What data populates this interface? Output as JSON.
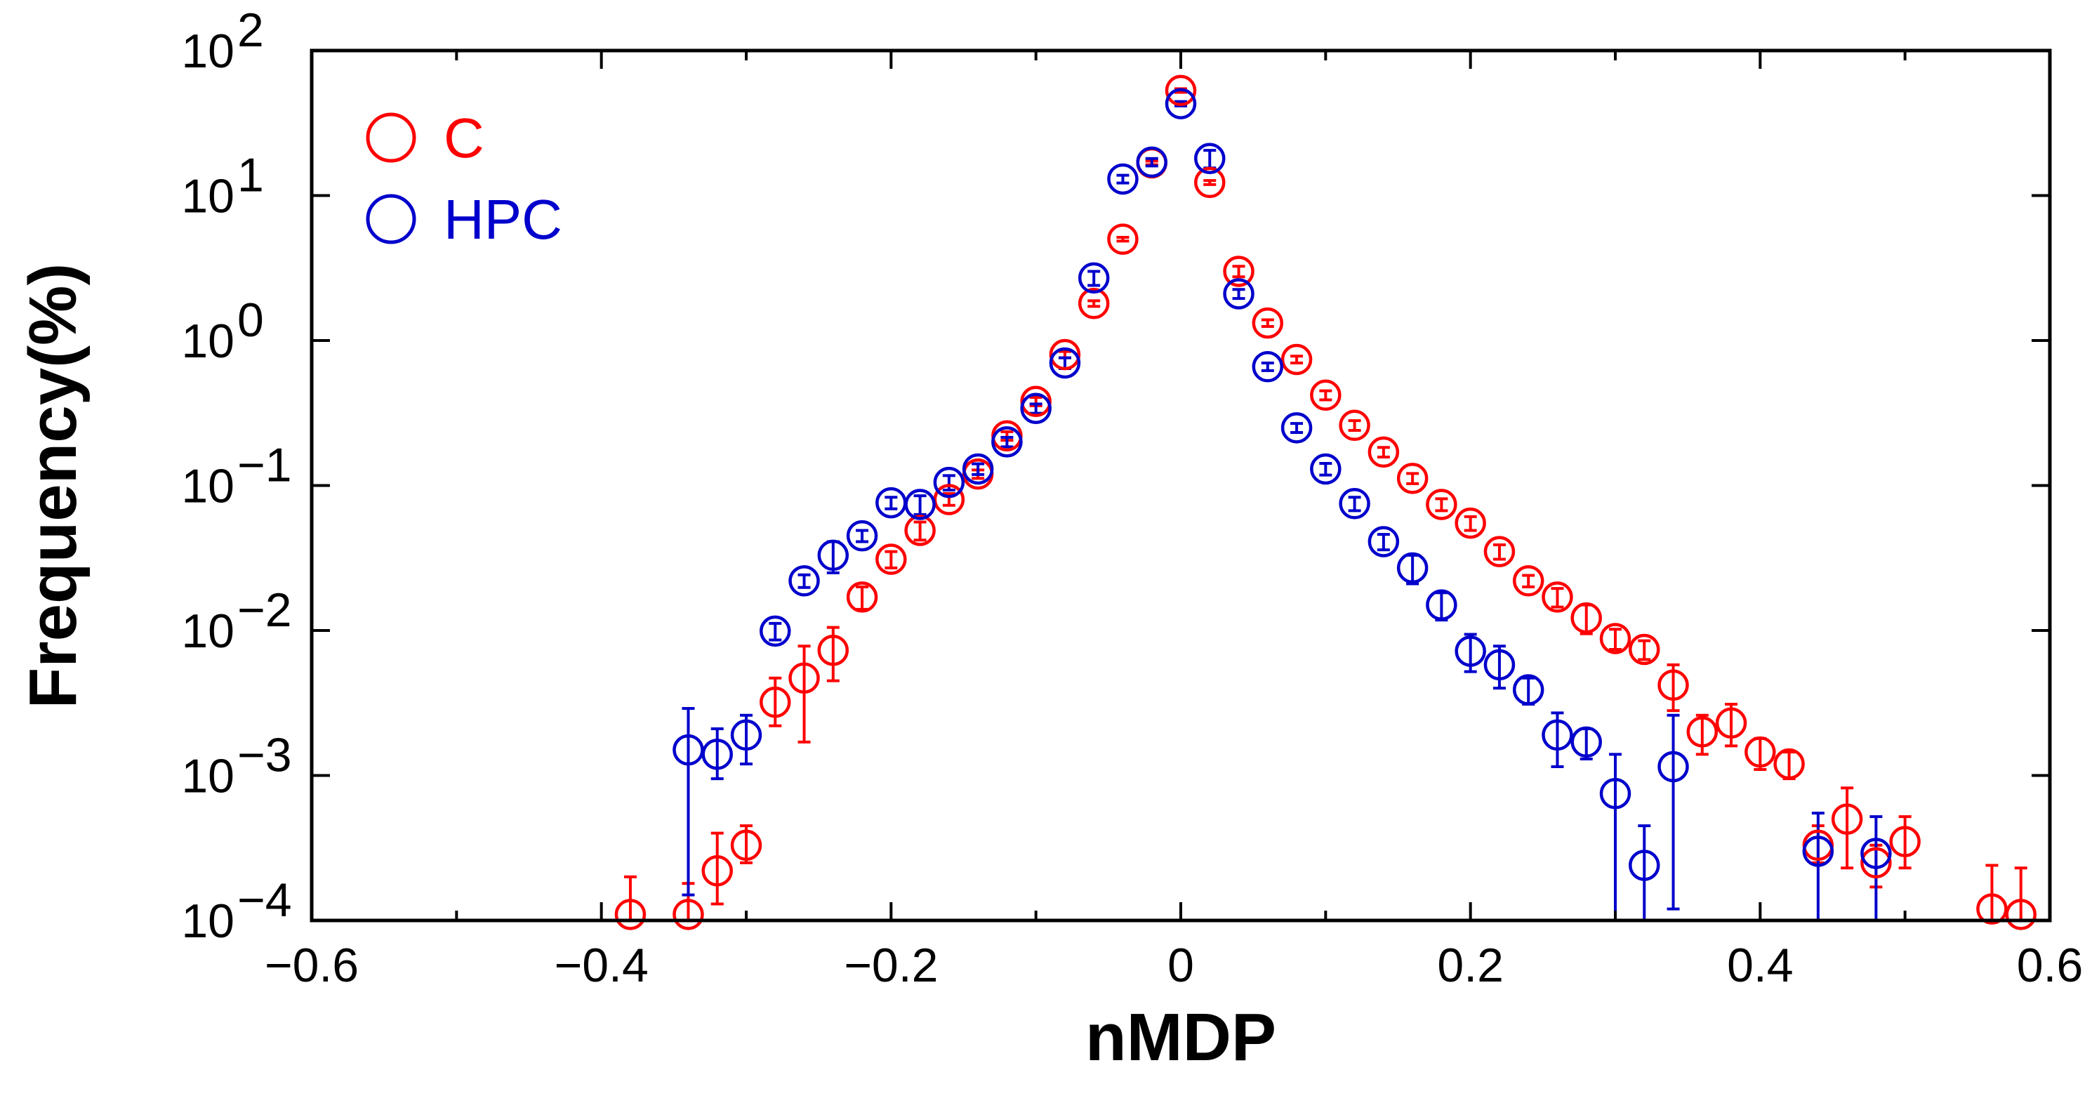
{
  "chart_data": {
    "type": "scatter",
    "title": "",
    "xlabel": "nMDP",
    "ylabel": "Frequency(%)",
    "xlim": [
      -0.6,
      0.6
    ],
    "ylim": [
      0.0001,
      100
    ],
    "yscale": "log",
    "legend_position": "top-left",
    "x_ticks": [
      "−0.6",
      "−0.4",
      "−0.2",
      "0",
      "0.2",
      "0.4",
      "0.6"
    ],
    "x_tick_values": [
      -0.6,
      -0.4,
      -0.2,
      0,
      0.2,
      0.4,
      0.6
    ],
    "y_ticks": [
      {
        "value": 100,
        "base": "10",
        "exp": "2"
      },
      {
        "value": 10,
        "base": "10",
        "exp": "1"
      },
      {
        "value": 1,
        "base": "10",
        "exp": "0"
      },
      {
        "value": 0.1,
        "base": "10",
        "exp": "−1"
      },
      {
        "value": 0.01,
        "base": "10",
        "exp": "−2"
      },
      {
        "value": 0.001,
        "base": "10",
        "exp": "−3"
      },
      {
        "value": 0.0001,
        "base": "10",
        "exp": "−4"
      }
    ],
    "series": [
      {
        "name": "C",
        "color": "#ff0000",
        "points": [
          {
            "x": -0.38,
            "y": 0.00011,
            "lo": 0.0001,
            "hi": 0.0002
          },
          {
            "x": -0.34,
            "y": 0.00011,
            "lo": 0.0001,
            "hi": 0.00018
          },
          {
            "x": -0.32,
            "y": 0.00022,
            "lo": 0.00013,
            "hi": 0.0004
          },
          {
            "x": -0.3,
            "y": 0.00033,
            "lo": 0.00025,
            "hi": 0.00045
          },
          {
            "x": -0.28,
            "y": 0.0032,
            "lo": 0.0022,
            "hi": 0.0047
          },
          {
            "x": -0.26,
            "y": 0.0047,
            "lo": 0.0017,
            "hi": 0.0078
          },
          {
            "x": -0.24,
            "y": 0.0073,
            "lo": 0.0045,
            "hi": 0.0105
          },
          {
            "x": -0.22,
            "y": 0.017,
            "lo": 0.014,
            "hi": 0.02
          },
          {
            "x": -0.2,
            "y": 0.031,
            "lo": 0.027,
            "hi": 0.035
          },
          {
            "x": -0.18,
            "y": 0.049,
            "lo": 0.042,
            "hi": 0.056
          },
          {
            "x": -0.16,
            "y": 0.08,
            "lo": 0.073,
            "hi": 0.088
          },
          {
            "x": -0.14,
            "y": 0.12,
            "lo": 0.112,
            "hi": 0.128
          },
          {
            "x": -0.12,
            "y": 0.22,
            "lo": 0.205,
            "hi": 0.235
          },
          {
            "x": -0.1,
            "y": 0.38,
            "lo": 0.355,
            "hi": 0.405
          },
          {
            "x": -0.08,
            "y": 0.8,
            "lo": 0.76,
            "hi": 0.84
          },
          {
            "x": -0.06,
            "y": 1.8,
            "lo": 1.72,
            "hi": 1.88
          },
          {
            "x": -0.04,
            "y": 5.0,
            "lo": 4.85,
            "hi": 5.15
          },
          {
            "x": -0.02,
            "y": 16.8,
            "lo": 16.3,
            "hi": 17.3
          },
          {
            "x": 0.0,
            "y": 53.0,
            "lo": 51.5,
            "hi": 54.5
          },
          {
            "x": 0.02,
            "y": 12.3,
            "lo": 11.9,
            "hi": 12.7
          },
          {
            "x": 0.04,
            "y": 3.0,
            "lo": 2.75,
            "hi": 3.25
          },
          {
            "x": 0.06,
            "y": 1.32,
            "lo": 1.25,
            "hi": 1.39
          },
          {
            "x": 0.08,
            "y": 0.74,
            "lo": 0.7,
            "hi": 0.78
          },
          {
            "x": 0.1,
            "y": 0.42,
            "lo": 0.39,
            "hi": 0.45
          },
          {
            "x": 0.12,
            "y": 0.26,
            "lo": 0.24,
            "hi": 0.28
          },
          {
            "x": 0.14,
            "y": 0.17,
            "lo": 0.157,
            "hi": 0.183
          },
          {
            "x": 0.16,
            "y": 0.112,
            "lo": 0.103,
            "hi": 0.121
          },
          {
            "x": 0.18,
            "y": 0.074,
            "lo": 0.067,
            "hi": 0.081
          },
          {
            "x": 0.2,
            "y": 0.055,
            "lo": 0.049,
            "hi": 0.061
          },
          {
            "x": 0.22,
            "y": 0.035,
            "lo": 0.031,
            "hi": 0.039
          },
          {
            "x": 0.24,
            "y": 0.022,
            "lo": 0.02,
            "hi": 0.024
          },
          {
            "x": 0.26,
            "y": 0.017,
            "lo": 0.0145,
            "hi": 0.0195
          },
          {
            "x": 0.28,
            "y": 0.0122,
            "lo": 0.0095,
            "hi": 0.015
          },
          {
            "x": 0.3,
            "y": 0.0088,
            "lo": 0.0074,
            "hi": 0.0102
          },
          {
            "x": 0.32,
            "y": 0.0074,
            "lo": 0.0063,
            "hi": 0.0085
          },
          {
            "x": 0.34,
            "y": 0.0042,
            "lo": 0.0028,
            "hi": 0.0058
          },
          {
            "x": 0.36,
            "y": 0.002,
            "lo": 0.0014,
            "hi": 0.0026
          },
          {
            "x": 0.38,
            "y": 0.0023,
            "lo": 0.0016,
            "hi": 0.0031
          },
          {
            "x": 0.4,
            "y": 0.00145,
            "lo": 0.0011,
            "hi": 0.0018
          },
          {
            "x": 0.42,
            "y": 0.0012,
            "lo": 0.00095,
            "hi": 0.00145
          },
          {
            "x": 0.44,
            "y": 0.00033,
            "lo": 0.00025,
            "hi": 0.00045
          },
          {
            "x": 0.46,
            "y": 0.0005,
            "lo": 0.00023,
            "hi": 0.00082
          },
          {
            "x": 0.48,
            "y": 0.00025,
            "lo": 0.00017,
            "hi": 0.00033
          },
          {
            "x": 0.5,
            "y": 0.00035,
            "lo": 0.00023,
            "hi": 0.00052
          },
          {
            "x": 0.56,
            "y": 0.00012,
            "lo": 0.0001,
            "hi": 0.00024
          },
          {
            "x": 0.58,
            "y": 0.00011,
            "lo": 0.0001,
            "hi": 0.00023
          }
        ]
      },
      {
        "name": "HPC",
        "color": "#0000cc",
        "points": [
          {
            "x": -0.34,
            "y": 0.0015,
            "lo": 0.00015,
            "hi": 0.0029
          },
          {
            "x": -0.32,
            "y": 0.0014,
            "lo": 0.00095,
            "hi": 0.0021
          },
          {
            "x": -0.3,
            "y": 0.0019,
            "lo": 0.0012,
            "hi": 0.0026
          },
          {
            "x": -0.28,
            "y": 0.0099,
            "lo": 0.0086,
            "hi": 0.0112
          },
          {
            "x": -0.26,
            "y": 0.022,
            "lo": 0.0198,
            "hi": 0.0242
          },
          {
            "x": -0.24,
            "y": 0.033,
            "lo": 0.025,
            "hi": 0.041
          },
          {
            "x": -0.22,
            "y": 0.045,
            "lo": 0.041,
            "hi": 0.049
          },
          {
            "x": -0.2,
            "y": 0.076,
            "lo": 0.069,
            "hi": 0.083
          },
          {
            "x": -0.18,
            "y": 0.074,
            "lo": 0.063,
            "hi": 0.085
          },
          {
            "x": -0.16,
            "y": 0.105,
            "lo": 0.093,
            "hi": 0.117
          },
          {
            "x": -0.14,
            "y": 0.13,
            "lo": 0.119,
            "hi": 0.141
          },
          {
            "x": -0.12,
            "y": 0.2,
            "lo": 0.185,
            "hi": 0.215
          },
          {
            "x": -0.1,
            "y": 0.34,
            "lo": 0.315,
            "hi": 0.365
          },
          {
            "x": -0.08,
            "y": 0.7,
            "lo": 0.64,
            "hi": 0.76
          },
          {
            "x": -0.06,
            "y": 2.7,
            "lo": 2.4,
            "hi": 3.0
          },
          {
            "x": -0.04,
            "y": 13.0,
            "lo": 12.2,
            "hi": 13.8
          },
          {
            "x": -0.02,
            "y": 17.0,
            "lo": 16.0,
            "hi": 18.0
          },
          {
            "x": 0.0,
            "y": 43.0,
            "lo": 41.5,
            "hi": 44.5
          },
          {
            "x": 0.02,
            "y": 18.0,
            "lo": 15.5,
            "hi": 20.5
          },
          {
            "x": 0.04,
            "y": 2.1,
            "lo": 1.95,
            "hi": 2.25
          },
          {
            "x": 0.06,
            "y": 0.66,
            "lo": 0.62,
            "hi": 0.7
          },
          {
            "x": 0.08,
            "y": 0.25,
            "lo": 0.232,
            "hi": 0.268
          },
          {
            "x": 0.1,
            "y": 0.13,
            "lo": 0.118,
            "hi": 0.142
          },
          {
            "x": 0.12,
            "y": 0.075,
            "lo": 0.067,
            "hi": 0.083
          },
          {
            "x": 0.14,
            "y": 0.041,
            "lo": 0.036,
            "hi": 0.046
          },
          {
            "x": 0.16,
            "y": 0.027,
            "lo": 0.021,
            "hi": 0.033
          },
          {
            "x": 0.18,
            "y": 0.015,
            "lo": 0.0118,
            "hi": 0.0182
          },
          {
            "x": 0.2,
            "y": 0.0072,
            "lo": 0.0052,
            "hi": 0.0094
          },
          {
            "x": 0.22,
            "y": 0.0058,
            "lo": 0.004,
            "hi": 0.0078
          },
          {
            "x": 0.24,
            "y": 0.0039,
            "lo": 0.0031,
            "hi": 0.0047
          },
          {
            "x": 0.26,
            "y": 0.0019,
            "lo": 0.00115,
            "hi": 0.0027
          },
          {
            "x": 0.28,
            "y": 0.0017,
            "lo": 0.0013,
            "hi": 0.0021
          },
          {
            "x": 0.3,
            "y": 0.00075,
            "lo": 0.0001,
            "hi": 0.0014
          },
          {
            "x": 0.32,
            "y": 0.00024,
            "lo": 0.0001,
            "hi": 0.00045
          },
          {
            "x": 0.34,
            "y": 0.00115,
            "lo": 0.00012,
            "hi": 0.0026
          },
          {
            "x": 0.44,
            "y": 0.0003,
            "lo": 0.0001,
            "hi": 0.00055
          },
          {
            "x": 0.48,
            "y": 0.00029,
            "lo": 0.0001,
            "hi": 0.00052
          }
        ]
      }
    ]
  }
}
